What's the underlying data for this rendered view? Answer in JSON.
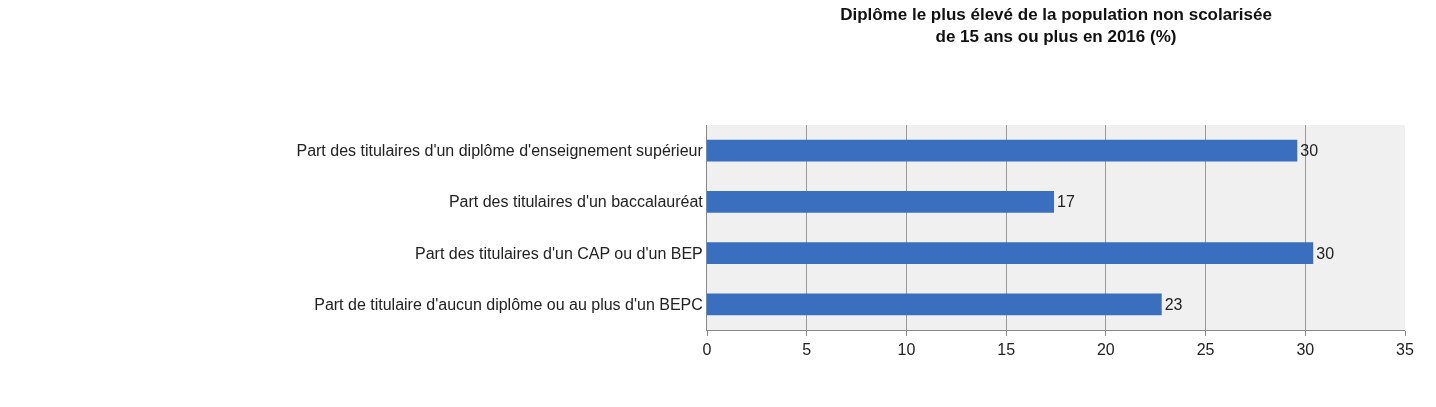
{
  "chart_data": {
    "type": "bar",
    "orientation": "horizontal",
    "title": "Diplôme le plus élevé de la population non scolarisée\nde 15 ans ou plus en 2016 (%)",
    "categories": [
      "Part des titulaires d'un diplôme d'enseignement supérieur",
      "Part des titulaires d'un baccalauréat",
      "Part des titulaires d'un CAP ou d'un BEP",
      "Part de titulaire d'aucun diplôme ou au plus d'un BEPC"
    ],
    "values": [
      29.6,
      17.4,
      30.4,
      22.8
    ],
    "value_labels": [
      "30",
      "17",
      "30",
      "23"
    ],
    "color": "#3a6fbf",
    "xlim": [
      0,
      35
    ],
    "xticks": [
      0,
      5,
      10,
      15,
      20,
      25,
      30,
      35
    ],
    "grid": "x",
    "legend": false
  }
}
